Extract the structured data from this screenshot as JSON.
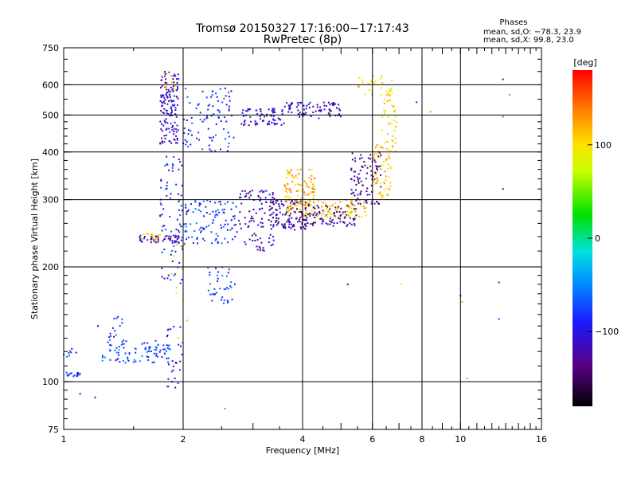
{
  "chart_data": {
    "type": "scatter",
    "title_line1": "Tromsø 20150327 17:16:00−17:17:43",
    "title_line2": "RwPretec (8p)",
    "xlabel": "Frequency [MHz]",
    "ylabel": "Stationary phase Virtual Height [km]",
    "x_scale": "log",
    "y_scale": "log",
    "xlim": [
      1,
      16
    ],
    "ylim": [
      75,
      750
    ],
    "x_ticks": [
      1,
      2,
      4,
      6,
      8,
      10,
      16
    ],
    "x_tick_labels": [
      "1",
      "2",
      "4",
      "6",
      "8",
      "10",
      "16"
    ],
    "y_ticks": [
      75,
      100,
      200,
      300,
      400,
      500,
      600,
      750
    ],
    "y_tick_labels": [
      "75",
      "100",
      "200",
      "300",
      "400",
      "500",
      "600",
      "750"
    ],
    "grid": true,
    "phases_box": {
      "heading": "Phases",
      "line_o": "mean, sd,O: −78.3, 23.9",
      "line_x": "mean, sd,X:  99.8, 23.0"
    },
    "colorbar": {
      "label": "[deg]",
      "range": [
        -180,
        180
      ],
      "ticks": [
        100,
        0,
        -100
      ],
      "tick_labels": [
        "100",
        "0",
        "−100"
      ]
    },
    "clusters": [
      {
        "f": [
          1.0,
          1.1
        ],
        "h": [
          103,
          106
        ],
        "phase": -80,
        "n": 18
      },
      {
        "f": [
          1.0,
          1.08
        ],
        "h": [
          115,
          125
        ],
        "phase": -80,
        "n": 8
      },
      {
        "f": [
          1.25,
          1.85
        ],
        "h": [
          112,
          128
        ],
        "phase": -75,
        "n": 90
      },
      {
        "f": [
          1.3,
          1.45
        ],
        "h": [
          128,
          150
        ],
        "phase": -78,
        "n": 15
      },
      {
        "f": [
          1.55,
          1.95
        ],
        "h": [
          231,
          242
        ],
        "phase": -120,
        "n": 45
      },
      {
        "f": [
          1.55,
          1.75
        ],
        "h": [
          235,
          245
        ],
        "phase": 110,
        "n": 14
      },
      {
        "f": [
          1.75,
          1.95
        ],
        "h": [
          420,
          650
        ],
        "phase": -110,
        "n": 140
      },
      {
        "f": [
          1.78,
          1.95
        ],
        "h": [
          560,
          650
        ],
        "phase": 120,
        "n": 10
      },
      {
        "f": [
          1.75,
          2.0
        ],
        "h": [
          180,
          400
        ],
        "phase": -90,
        "n": 80
      },
      {
        "f": [
          1.8,
          2.0
        ],
        "h": [
          96,
          140
        ],
        "phase": -100,
        "n": 30
      },
      {
        "f": [
          1.85,
          2.05
        ],
        "h": [
          130,
          245
        ],
        "phase": 100,
        "n": 12
      },
      {
        "f": [
          1.95,
          2.7
        ],
        "h": [
          230,
          300
        ],
        "phase": -75,
        "n": 110
      },
      {
        "f": [
          2.0,
          2.7
        ],
        "h": [
          400,
          590
        ],
        "phase": -85,
        "n": 90
      },
      {
        "f": [
          2.3,
          2.7
        ],
        "h": [
          160,
          200
        ],
        "phase": -75,
        "n": 40
      },
      {
        "f": [
          2.8,
          3.6
        ],
        "h": [
          470,
          520
        ],
        "phase": -110,
        "n": 70
      },
      {
        "f": [
          3.6,
          5.0
        ],
        "h": [
          490,
          540
        ],
        "phase": -115,
        "n": 80
      },
      {
        "f": [
          2.7,
          3.4
        ],
        "h": [
          220,
          320
        ],
        "phase": -115,
        "n": 100
      },
      {
        "f": [
          3.3,
          4.2
        ],
        "h": [
          250,
          300
        ],
        "phase": -125,
        "n": 120
      },
      {
        "f": [
          3.6,
          4.3
        ],
        "h": [
          270,
          360
        ],
        "phase": 115,
        "n": 120
      },
      {
        "f": [
          4.0,
          5.5
        ],
        "h": [
          255,
          290
        ],
        "phase": -130,
        "n": 90
      },
      {
        "f": [
          4.3,
          5.8
        ],
        "h": [
          270,
          300
        ],
        "phase": 105,
        "n": 70
      },
      {
        "f": [
          5.3,
          6.3
        ],
        "h": [
          290,
          400
        ],
        "phase": -125,
        "n": 90
      },
      {
        "f": [
          6.0,
          6.7
        ],
        "h": [
          300,
          420
        ],
        "phase": 110,
        "n": 60
      },
      {
        "f": [
          6.3,
          6.9
        ],
        "h": [
          400,
          600
        ],
        "phase": 100,
        "n": 50
      },
      {
        "f": [
          5.5,
          6.8
        ],
        "h": [
          560,
          640
        ],
        "phase": 95,
        "n": 25
      }
    ],
    "isolated_points": [
      {
        "f": 1.22,
        "h": 140,
        "phase": -120
      },
      {
        "f": 1.1,
        "h": 93,
        "phase": -95
      },
      {
        "f": 1.2,
        "h": 91,
        "phase": -115
      },
      {
        "f": 2.55,
        "h": 85,
        "phase": 140
      },
      {
        "f": 5.2,
        "h": 180,
        "phase": -115
      },
      {
        "f": 7.1,
        "h": 180,
        "phase": 100
      },
      {
        "f": 7.75,
        "h": 540,
        "phase": -110
      },
      {
        "f": 8.4,
        "h": 510,
        "phase": 130
      },
      {
        "f": 10.0,
        "h": 168,
        "phase": -115
      },
      {
        "f": 10.1,
        "h": 162,
        "phase": 120
      },
      {
        "f": 10.4,
        "h": 102,
        "phase": 130
      },
      {
        "f": 12.5,
        "h": 182,
        "phase": -110
      },
      {
        "f": 12.5,
        "h": 146,
        "phase": -80
      },
      {
        "f": 12.8,
        "h": 320,
        "phase": -110
      },
      {
        "f": 12.8,
        "h": 495,
        "phase": 150
      },
      {
        "f": 12.8,
        "h": 620,
        "phase": -130
      },
      {
        "f": 13.3,
        "h": 565,
        "phase": 30
      }
    ]
  }
}
